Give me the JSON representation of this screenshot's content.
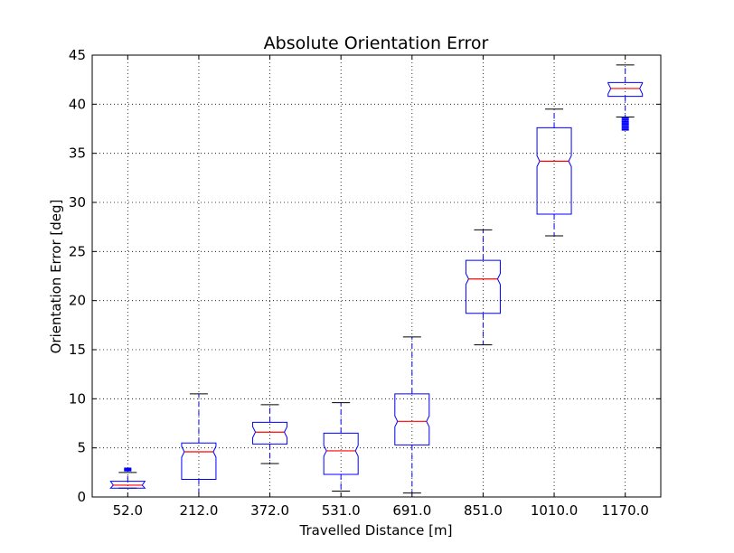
{
  "chart_data": {
    "type": "boxplot",
    "title": "Absolute Orientation Error",
    "xlabel": "Travelled Distance [m]",
    "ylabel": "Orientation Error [deg]",
    "ylim": [
      0,
      45
    ],
    "yticks": [
      0,
      5,
      10,
      15,
      20,
      25,
      30,
      35,
      40,
      45
    ],
    "grid": true,
    "notched": true,
    "box_color": "#0000ff",
    "median_color": "#ff0000",
    "whisker_style": "dashed",
    "categories": [
      "52.0",
      "212.0",
      "372.0",
      "531.0",
      "691.0",
      "851.0",
      "1010.0",
      "1170.0"
    ],
    "boxes": [
      {
        "whisker_low": 0.9,
        "q1": 0.9,
        "median": 1.2,
        "q3": 1.6,
        "whisker_high": 2.5,
        "fliers": [
          2.7,
          2.8,
          2.9
        ]
      },
      {
        "whisker_low": 0.0,
        "q1": 1.8,
        "median": 4.6,
        "q3": 5.5,
        "whisker_high": 10.5,
        "fliers": []
      },
      {
        "whisker_low": 3.4,
        "q1": 5.4,
        "median": 6.6,
        "q3": 7.6,
        "whisker_high": 9.4,
        "fliers": []
      },
      {
        "whisker_low": 0.6,
        "q1": 2.3,
        "median": 4.7,
        "q3": 6.5,
        "whisker_high": 9.6,
        "fliers": []
      },
      {
        "whisker_low": 0.4,
        "q1": 5.3,
        "median": 7.7,
        "q3": 10.5,
        "whisker_high": 16.3,
        "fliers": []
      },
      {
        "whisker_low": 15.5,
        "q1": 18.7,
        "median": 22.2,
        "q3": 24.1,
        "whisker_high": 27.2,
        "fliers": []
      },
      {
        "whisker_low": 26.6,
        "q1": 28.8,
        "median": 34.2,
        "q3": 37.6,
        "whisker_high": 39.5,
        "fliers": []
      },
      {
        "whisker_low": 38.7,
        "q1": 40.8,
        "median": 41.6,
        "q3": 42.2,
        "whisker_high": 44.0,
        "fliers": [
          38.6,
          38.4,
          38.2,
          38.0,
          37.8,
          37.6,
          37.4
        ]
      }
    ]
  }
}
